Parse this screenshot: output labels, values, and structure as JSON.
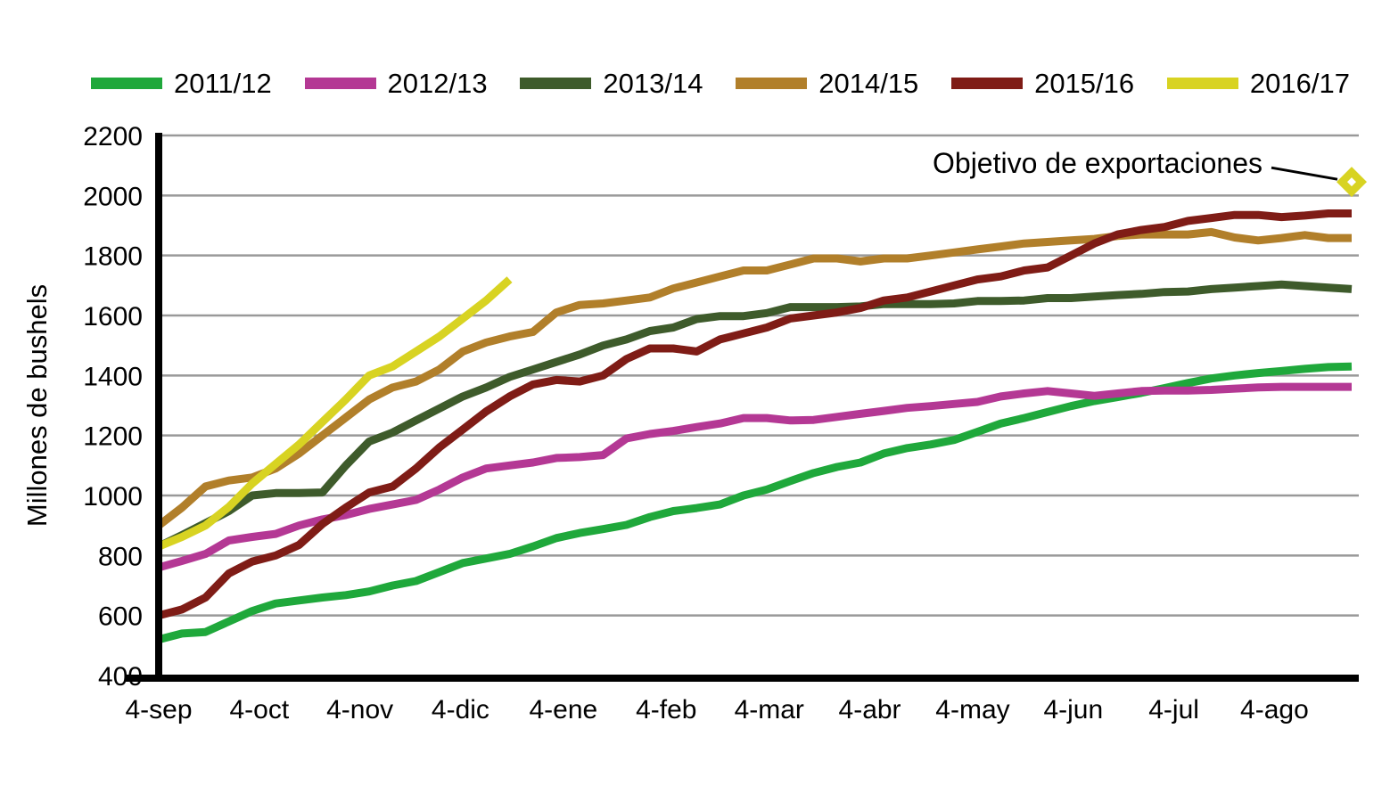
{
  "chart_data": {
    "type": "line",
    "title": "",
    "xlabel": "",
    "ylabel": "Millones de bushels",
    "ylim": [
      400,
      2200
    ],
    "y_ticks": [
      400,
      600,
      800,
      1000,
      1200,
      1400,
      1600,
      1800,
      2000,
      2200
    ],
    "x_ticks": [
      "4-sep",
      "4-oct",
      "4-nov",
      "4-dic",
      "4-ene",
      "4-feb",
      "4-mar",
      "4-abr",
      "4-may",
      "4-jun",
      "4-jul",
      "4-ago"
    ],
    "x_tick_weeks": [
      0,
      4.3,
      8.6,
      12.9,
      17.3,
      21.7,
      26.1,
      30.4,
      34.8,
      39.1,
      43.4,
      47.7
    ],
    "x_unit": "week",
    "weeks_total": 51,
    "grid": "horizontal",
    "grid_color": "#999999",
    "axis_color": "#000000",
    "legend_position": "top",
    "series": [
      {
        "name": "2011/12",
        "color": "#1fa83b",
        "start_week": 0,
        "values": [
          520,
          540,
          545,
          580,
          615,
          640,
          650,
          660,
          668,
          680,
          700,
          715,
          745,
          775,
          790,
          805,
          830,
          858,
          875,
          888,
          902,
          928,
          948,
          958,
          970,
          1000,
          1020,
          1048,
          1075,
          1095,
          1110,
          1140,
          1158,
          1170,
          1185,
          1212,
          1240,
          1258,
          1278,
          1298,
          1315,
          1328,
          1342,
          1358,
          1375,
          1390,
          1400,
          1408,
          1415,
          1422,
          1428,
          1430
        ]
      },
      {
        "name": "2012/13",
        "color": "#b43894",
        "start_week": 0,
        "values": [
          760,
          782,
          805,
          850,
          862,
          872,
          900,
          920,
          935,
          955,
          970,
          985,
          1020,
          1060,
          1090,
          1100,
          1110,
          1125,
          1128,
          1135,
          1190,
          1205,
          1215,
          1228,
          1240,
          1258,
          1258,
          1250,
          1252,
          1262,
          1272,
          1282,
          1292,
          1298,
          1305,
          1312,
          1330,
          1340,
          1348,
          1340,
          1332,
          1340,
          1348,
          1350,
          1350,
          1352,
          1356,
          1360,
          1362,
          1362,
          1362,
          1362
        ]
      },
      {
        "name": "2013/14",
        "color": "#3e5b2b",
        "start_week": 0,
        "values": [
          830,
          868,
          908,
          948,
          1000,
          1008,
          1008,
          1010,
          1100,
          1180,
          1210,
          1250,
          1290,
          1330,
          1360,
          1395,
          1420,
          1445,
          1470,
          1500,
          1520,
          1548,
          1560,
          1588,
          1598,
          1598,
          1608,
          1628,
          1628,
          1628,
          1630,
          1638,
          1638,
          1638,
          1640,
          1648,
          1648,
          1650,
          1658,
          1658,
          1663,
          1668,
          1672,
          1678,
          1680,
          1688,
          1693,
          1698,
          1703,
          1698,
          1693,
          1688
        ]
      },
      {
        "name": "2014/15",
        "color": "#b17f2a",
        "start_week": 0,
        "values": [
          900,
          960,
          1030,
          1050,
          1060,
          1090,
          1140,
          1200,
          1260,
          1320,
          1360,
          1380,
          1420,
          1480,
          1510,
          1530,
          1545,
          1610,
          1635,
          1640,
          1650,
          1660,
          1690,
          1710,
          1730,
          1750,
          1750,
          1770,
          1790,
          1790,
          1780,
          1790,
          1790,
          1800,
          1810,
          1820,
          1830,
          1840,
          1845,
          1850,
          1855,
          1865,
          1870,
          1870,
          1870,
          1878,
          1860,
          1850,
          1858,
          1868,
          1858,
          1858
        ]
      },
      {
        "name": "2015/16",
        "color": "#7f1c16",
        "start_week": 0,
        "values": [
          600,
          620,
          660,
          740,
          780,
          800,
          835,
          905,
          960,
          1010,
          1030,
          1090,
          1160,
          1220,
          1280,
          1330,
          1370,
          1385,
          1380,
          1400,
          1455,
          1490,
          1490,
          1480,
          1520,
          1540,
          1560,
          1590,
          1600,
          1610,
          1625,
          1650,
          1660,
          1680,
          1700,
          1720,
          1730,
          1750,
          1760,
          1800,
          1840,
          1870,
          1885,
          1895,
          1915,
          1925,
          1935,
          1935,
          1928,
          1933,
          1940,
          1940
        ]
      },
      {
        "name": "2016/17",
        "color": "#d8d322",
        "start_week": 0,
        "values": [
          830,
          862,
          900,
          962,
          1040,
          1105,
          1170,
          1245,
          1320,
          1400,
          1430,
          1480,
          1530,
          1590,
          1650,
          1720
        ]
      }
    ],
    "annotation": {
      "label": "Objetivo de exportaciones",
      "value": 2045,
      "week": 51,
      "marker": "diamond",
      "marker_color": "#d8d322"
    }
  }
}
